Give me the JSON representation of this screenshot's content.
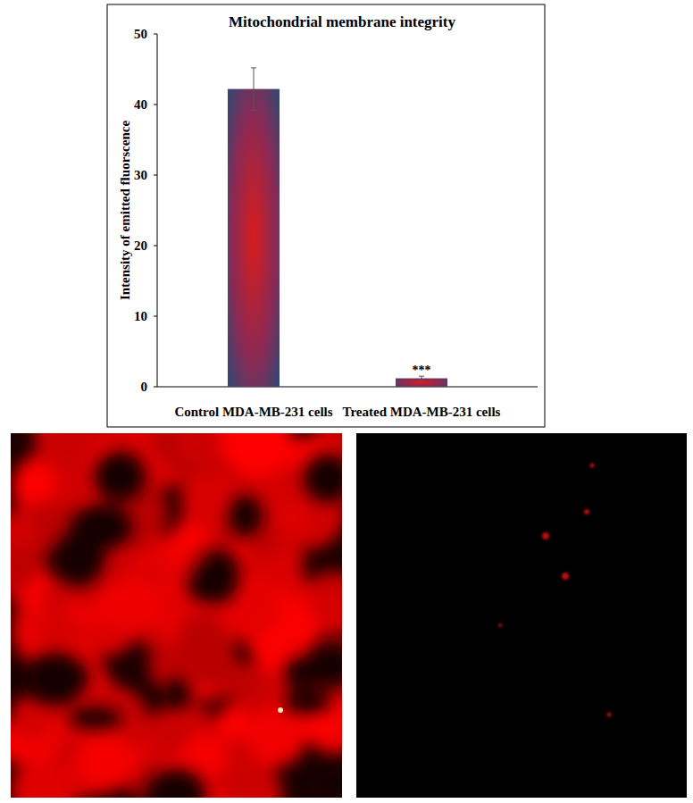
{
  "chart_data": {
    "type": "bar",
    "title": "Mitochondrial membrane integrity",
    "y_label": "Intensity of emitted fluorscence",
    "categories": [
      "Control MDA-MB-231 cells",
      "Treated MDA-MB-231 cells"
    ],
    "values": [
      42.2,
      1.2
    ],
    "errors": [
      3.0,
      0.3
    ],
    "color": "#1f4e79",
    "ylim": [
      0,
      50
    ],
    "yticks": [
      0,
      10,
      20,
      30,
      40,
      50
    ],
    "grid": false,
    "annotations": [
      {
        "x": "Treated MDA-MB-231 cells",
        "text": "***"
      }
    ]
  }
}
